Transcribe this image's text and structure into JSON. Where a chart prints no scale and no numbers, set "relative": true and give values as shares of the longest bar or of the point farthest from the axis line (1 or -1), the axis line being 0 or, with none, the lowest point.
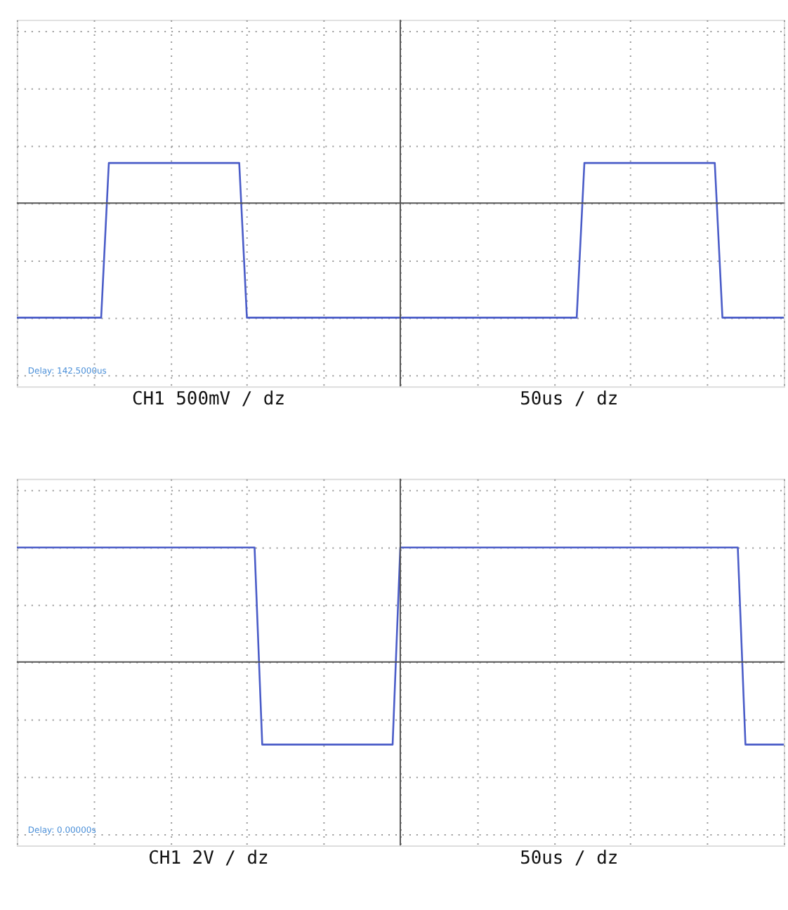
{
  "chart_data": [
    {
      "type": "line",
      "relative": true,
      "grid": true,
      "tick_labels": false,
      "line_style": "solid",
      "marker": "none",
      "categories": [
        null,
        null,
        null,
        null,
        null,
        null,
        null,
        null,
        null,
        null,
        null,
        null,
        null,
        null,
        null,
        null,
        null,
        null,
        null,
        null,
        null,
        null,
        null,
        null,
        null,
        null,
        null,
        null,
        null,
        null,
        null,
        null,
        null,
        null,
        null,
        null,
        null,
        null,
        null,
        null,
        null,
        null,
        null,
        null,
        null,
        null,
        null,
        null,
        null,
        null,
        null,
        null,
        null,
        null,
        null,
        null,
        null,
        null,
        null,
        null,
        null,
        null,
        null,
        null,
        null,
        null,
        null,
        null,
        null,
        null,
        null,
        null,
        null,
        null,
        null,
        null,
        null,
        null,
        null,
        null,
        null,
        null,
        null,
        null,
        null,
        null,
        null,
        null,
        null,
        null,
        null,
        null,
        null,
        null,
        null,
        null,
        null,
        null,
        null,
        null,
        null
      ],
      "series": [
        {
          "color": "#4a5cc8",
          "values": [
            -1,
            -1,
            -1,
            -1,
            -1,
            -1,
            -1,
            -1,
            -1,
            -1,
            -1,
            -1,
            0.35,
            0.35,
            0.35,
            0.35,
            0.35,
            0.35,
            0.35,
            0.35,
            0.35,
            0.35,
            0.35,
            0.35,
            0.35,
            0.35,
            0.35,
            0.35,
            0.35,
            0.35,
            -1,
            -1,
            -1,
            -1,
            -1,
            -1,
            -1,
            -1,
            -1,
            -1,
            -1,
            -1,
            -1,
            -1,
            -1,
            -1,
            -1,
            -1,
            -1,
            -1,
            -1,
            -1,
            -1,
            -1,
            -1,
            -1,
            -1,
            -1,
            -1,
            -1,
            -1,
            -1,
            -1,
            -1,
            -1,
            -1,
            -1,
            -1,
            -1,
            -1,
            -1,
            -1,
            -1,
            -1,
            0.35,
            0.35,
            0.35,
            0.35,
            0.35,
            0.35,
            0.35,
            0.35,
            0.35,
            0.35,
            0.35,
            0.35,
            0.35,
            0.35,
            0.35,
            0.35,
            0.35,
            0.35,
            -1,
            -1,
            -1,
            -1,
            -1,
            -1,
            -1,
            -1,
            -1
          ]
        }
      ],
      "annotations": [
        "Delay: 142.5000us",
        "CH1 500mV / dz",
        "50us / dz"
      ]
    },
    {
      "type": "line",
      "relative": true,
      "grid": true,
      "tick_labels": false,
      "line_style": "solid",
      "marker": "none",
      "categories": [
        null,
        null,
        null,
        null,
        null,
        null,
        null,
        null,
        null,
        null,
        null,
        null,
        null,
        null,
        null,
        null,
        null,
        null,
        null,
        null,
        null,
        null,
        null,
        null,
        null,
        null,
        null,
        null,
        null,
        null,
        null,
        null,
        null,
        null,
        null,
        null,
        null,
        null,
        null,
        null,
        null,
        null,
        null,
        null,
        null,
        null,
        null,
        null,
        null,
        null,
        null,
        null,
        null,
        null,
        null,
        null,
        null,
        null,
        null,
        null,
        null,
        null,
        null,
        null,
        null,
        null,
        null,
        null,
        null,
        null,
        null,
        null,
        null,
        null,
        null,
        null,
        null,
        null,
        null,
        null,
        null,
        null,
        null,
        null,
        null,
        null,
        null,
        null,
        null,
        null,
        null,
        null,
        null,
        null,
        null,
        null,
        null,
        null,
        null,
        null,
        null
      ],
      "series": [
        {
          "color": "#4a5cc8",
          "values": [
            1,
            1,
            1,
            1,
            1,
            1,
            1,
            1,
            1,
            1,
            1,
            1,
            1,
            1,
            1,
            1,
            1,
            1,
            1,
            1,
            1,
            1,
            1,
            1,
            1,
            1,
            1,
            1,
            1,
            1,
            1,
            1,
            -0.72,
            -0.72,
            -0.72,
            -0.72,
            -0.72,
            -0.72,
            -0.72,
            -0.72,
            -0.72,
            -0.72,
            -0.72,
            -0.72,
            -0.72,
            -0.72,
            -0.72,
            -0.72,
            -0.72,
            -0.72,
            1,
            1,
            1,
            1,
            1,
            1,
            1,
            1,
            1,
            1,
            1,
            1,
            1,
            1,
            1,
            1,
            1,
            1,
            1,
            1,
            1,
            1,
            1,
            1,
            1,
            1,
            1,
            1,
            1,
            1,
            1,
            1,
            1,
            1,
            1,
            1,
            1,
            1,
            1,
            1,
            1,
            1,
            1,
            1,
            1,
            -0.72,
            -0.72,
            -0.72,
            -0.72,
            -0.72,
            -0.72
          ]
        }
      ],
      "annotations": [
        "Delay: 0.00000s",
        "CH1 2V / dz",
        "50us / dz"
      ]
    }
  ]
}
